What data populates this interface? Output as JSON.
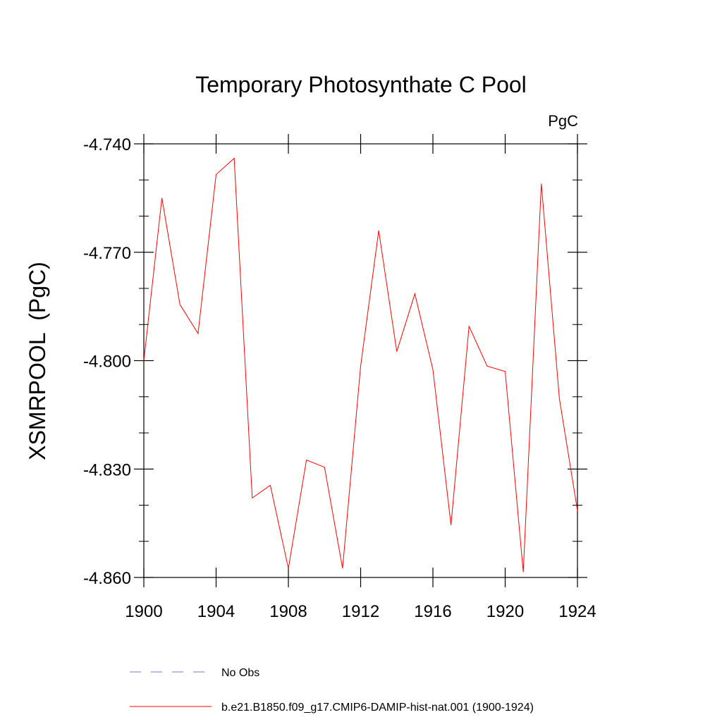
{
  "chart_data": {
    "type": "line",
    "title": "Temporary Photosynthate C Pool",
    "units_label": "PgC",
    "ylabel": "XSMRPOOL  (PgC)",
    "xlabel": "",
    "xlim": [
      1900,
      1924
    ],
    "ylim": [
      -4.86,
      -4.74
    ],
    "x_ticks": [
      1900,
      1904,
      1908,
      1912,
      1916,
      1920,
      1924
    ],
    "x_tick_labels": [
      "1900",
      "1904",
      "1908",
      "1912",
      "1916",
      "1920",
      "1924"
    ],
    "y_ticks": [
      -4.74,
      -4.77,
      -4.8,
      -4.83,
      -4.86
    ],
    "y_tick_labels": [
      "-4.740",
      "-4.770",
      "-4.800",
      "-4.830",
      "-4.860"
    ],
    "grid": false,
    "legend_position": "bottom",
    "series": [
      {
        "name": "No Obs",
        "color": "#7b6fc9",
        "dash": "dashed",
        "x": [],
        "values": []
      },
      {
        "name": "b.e21.B1850.f09_g17.CMIP6-DAMIP-hist-nat.001 (1900-1924)",
        "color": "#ff0000",
        "dash": "solid",
        "x": [
          1900,
          1901,
          1902,
          1903,
          1904,
          1905,
          1906,
          1907,
          1908,
          1909,
          1910,
          1911,
          1912,
          1913,
          1914,
          1915,
          1916,
          1917,
          1918,
          1919,
          1920,
          1921,
          1922,
          1923,
          1924
        ],
        "values": [
          -4.8,
          -4.755,
          -4.7845,
          -4.7925,
          -4.7485,
          -4.744,
          -4.838,
          -4.8345,
          -4.8575,
          -4.8275,
          -4.8295,
          -4.8575,
          -4.8015,
          -4.764,
          -4.7975,
          -4.7815,
          -4.8025,
          -4.8455,
          -4.7905,
          -4.8015,
          -4.803,
          -4.8585,
          -4.751,
          -4.8105,
          -4.8415
        ]
      }
    ]
  }
}
